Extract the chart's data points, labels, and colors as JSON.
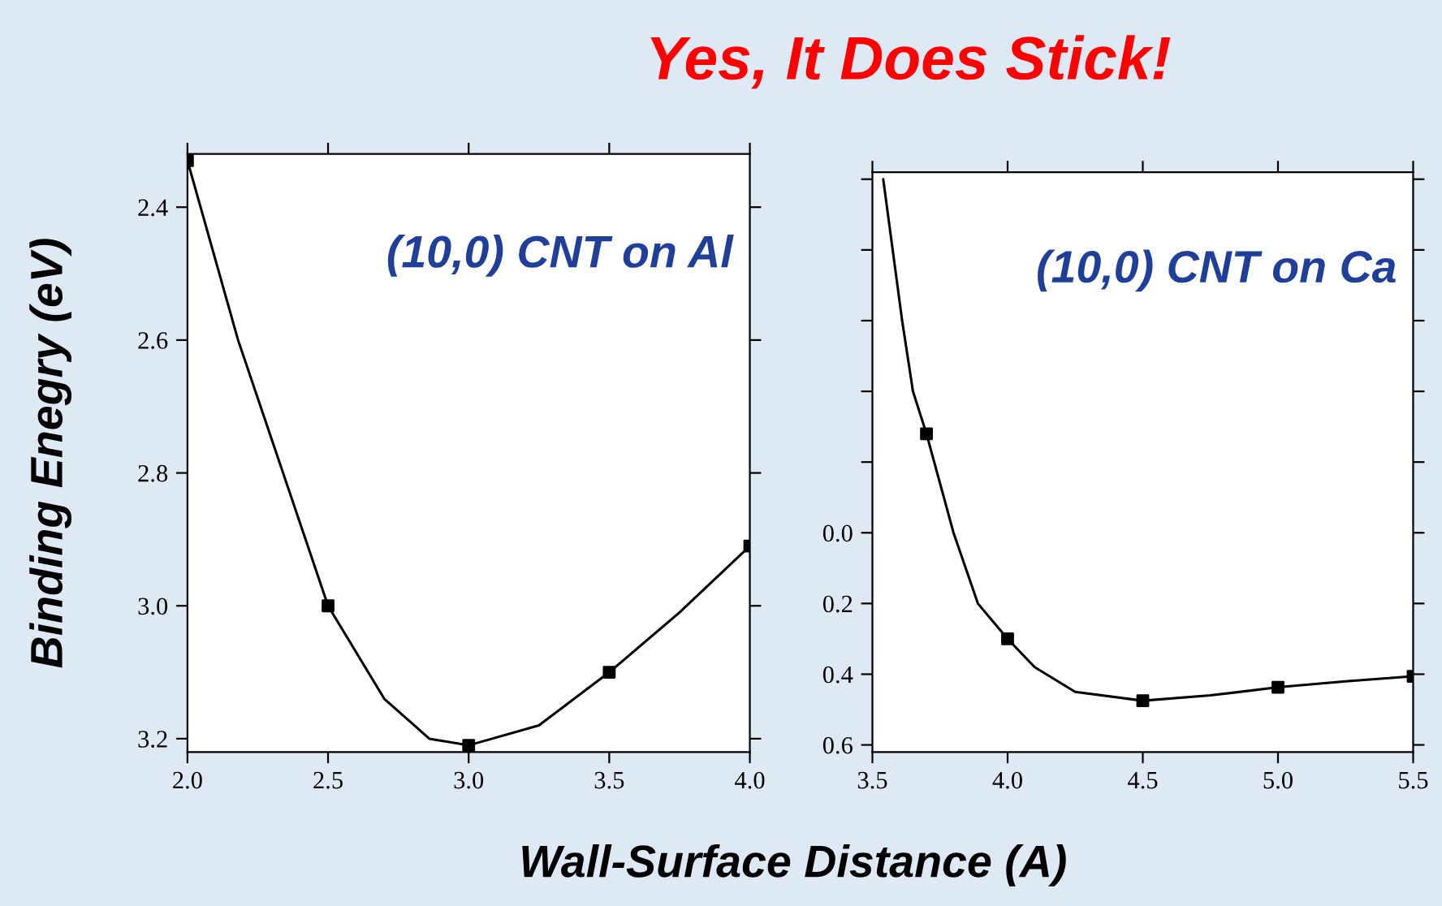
{
  "chart_data": [
    {
      "type": "line",
      "xlabel": "Wall-Surface Distance (A)",
      "ylabel": "Binding Enegry (eV)",
      "annotations": [
        "(10,0) CNT on Al"
      ],
      "xlim": [
        2.0,
        4.0
      ],
      "ylim": [
        3.22,
        2.32
      ],
      "xticks": [
        {
          "value": 2.0,
          "label": "2.0"
        },
        2.5,
        {
          "value": 3.0,
          "label": "3.0"
        },
        3.5,
        {
          "value": 4.0,
          "label": "4.0"
        }
      ],
      "yticks": [
        2.4,
        2.6,
        2.8,
        {
          "value": 3.0,
          "label": "3.0"
        },
        3.2
      ],
      "series": [
        {
          "color": "#000000",
          "x": [
            2.0,
            2.18,
            2.34,
            2.5,
            2.7,
            2.86,
            3.0,
            3.25,
            3.5,
            3.75,
            4.0
          ],
          "values": [
            2.33,
            2.6,
            2.8,
            3.0,
            3.14,
            3.2,
            3.21,
            3.18,
            3.1,
            3.01,
            2.91
          ],
          "marker": "none"
        },
        {
          "type": "scatter",
          "color": "#000000",
          "x": [
            2.0,
            2.5,
            3.0,
            3.5,
            4.0
          ],
          "values": [
            2.33,
            3.0,
            3.21,
            3.1,
            2.91
          ],
          "marker": "square"
        }
      ]
    },
    {
      "type": "line",
      "title": "Yes, It Does Stick!",
      "annotations": [
        "(10,0) CNT on Ca"
      ],
      "xlim": [
        3.5,
        5.5
      ],
      "ylim": [
        0.62,
        -1.02
      ],
      "xticks": [
        3.5,
        {
          "value": 4.0,
          "label": "4.0"
        },
        4.5,
        {
          "value": 5.0,
          "label": "5.0"
        },
        5.5
      ],
      "yticks": [
        {
          "value": -1.0,
          "label": null
        },
        {
          "value": -0.8,
          "label": null
        },
        {
          "value": -0.6,
          "label": null
        },
        {
          "value": -0.4,
          "label": null
        },
        {
          "value": -0.2,
          "label": null
        },
        {
          "value": 0.0,
          "label": "0.0"
        },
        0.2,
        0.4,
        0.6
      ],
      "series": [
        {
          "color": "#000000",
          "x": [
            3.54,
            3.61,
            3.65,
            3.7,
            3.8,
            3.89,
            4.0,
            4.1,
            4.25,
            4.5,
            4.75,
            5.0,
            5.25,
            5.5
          ],
          "values": [
            -1.0,
            -0.6,
            -0.4,
            -0.28,
            0.0,
            0.2,
            0.3,
            0.38,
            0.45,
            0.475,
            0.46,
            0.437,
            0.42,
            0.406
          ],
          "marker": "none"
        },
        {
          "type": "scatter",
          "color": "#000000",
          "x": [
            3.7,
            4.0,
            4.5,
            5.0,
            5.5
          ],
          "values": [
            -0.28,
            0.3,
            0.475,
            0.437,
            0.406
          ],
          "marker": "square"
        }
      ]
    }
  ]
}
